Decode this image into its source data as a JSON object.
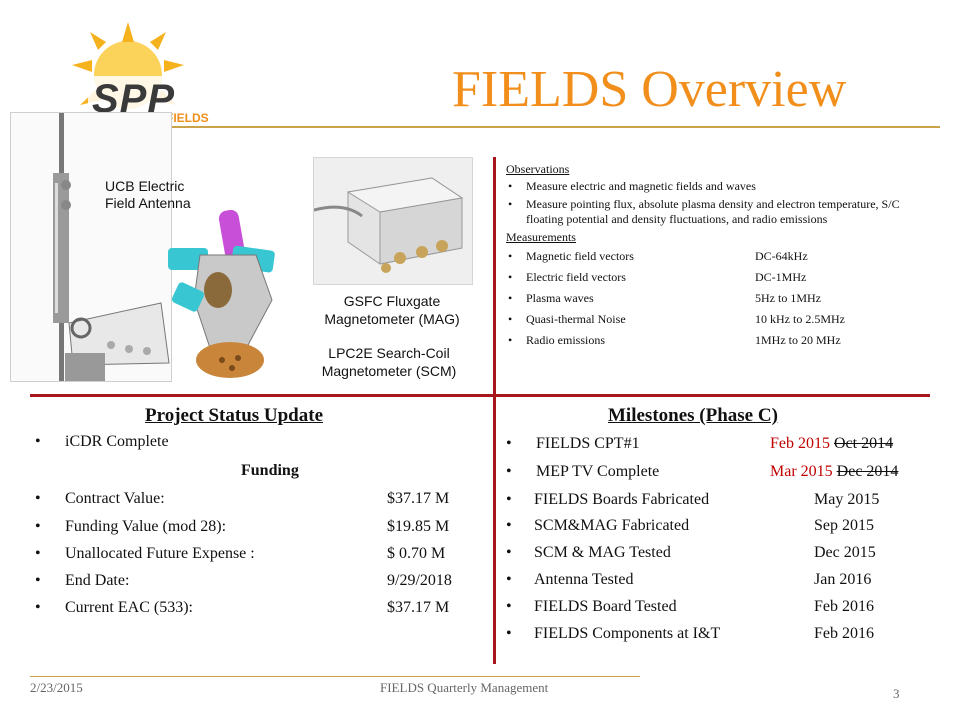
{
  "header": {
    "title": "FIELDS Overview",
    "logo_text": "SPP FIELDS"
  },
  "figures": {
    "ucb_label_1": "UCB Electric",
    "ucb_label_2": "Field Antenna",
    "gsfc_label_1": "GSFC Fluxgate",
    "gsfc_label_2": "Magnetometer (MAG)",
    "lpc_label_1": "LPC2E Search-Coil",
    "lpc_label_2": "Magnetometer (SCM)"
  },
  "observations": {
    "heading": "Observations",
    "items": [
      "Measure electric and magnetic fields and waves",
      "Measure pointing flux, absolute plasma density and electron temperature, S/C floating potential and density fluctuations, and radio emissions"
    ]
  },
  "measurements": {
    "heading": "Measurements",
    "items": [
      {
        "name": "Magnetic field vectors",
        "value": "DC-64kHz"
      },
      {
        "name": "Electric field vectors",
        "value": "DC-1MHz"
      },
      {
        "name": "Plasma waves",
        "value": "5Hz to 1MHz"
      },
      {
        "name": "Quasi-thermal Noise",
        "value": "10 kHz to 2.5MHz"
      },
      {
        "name": "Radio emissions",
        "value": "1MHz to 20 MHz"
      }
    ]
  },
  "project_status": {
    "title": "Project Status Update",
    "icdr": "iCDR Complete",
    "funding_heading": "Funding",
    "items": [
      {
        "label": "Contract Value:",
        "value": "$37.17 M"
      },
      {
        "label": "Funding Value (mod 28):",
        "value": "$19.85 M"
      },
      {
        "label": "Unallocated Future Expense :",
        "value": "$ 0.70 M"
      },
      {
        "label": "End Date:",
        "value": "9/29/2018"
      },
      {
        "label": "Current EAC (533):",
        "value": "$37.17 M"
      }
    ]
  },
  "milestones": {
    "title": "Milestones (Phase C)",
    "items": [
      {
        "label": "FIELDS CPT#1",
        "new_date": "Feb 2015",
        "old_date": "Oct 2014"
      },
      {
        "label": "MEP TV Complete",
        "new_date": "Mar 2015",
        "old_date": "Dec 2014"
      },
      {
        "label": "FIELDS Boards Fabricated",
        "date": "May 2015"
      },
      {
        "label": "SCM&MAG Fabricated",
        "date": "Sep 2015"
      },
      {
        "label": "SCM & MAG Tested",
        "date": "Dec 2015"
      },
      {
        "label": "Antenna Tested",
        "date": "Jan 2016"
      },
      {
        "label": "FIELDS Board Tested",
        "date": "Feb 2016"
      },
      {
        "label": "FIELDS Components at I&T",
        "date": "Feb 2016"
      }
    ]
  },
  "footer": {
    "date": "2/23/2015",
    "center": "FIELDS Quarterly Management",
    "page": "3"
  },
  "colors": {
    "title": "#f28f1c",
    "rule_red": "#a8161b",
    "rule_gold": "#c9a24a",
    "revised_date": "#c00000"
  }
}
